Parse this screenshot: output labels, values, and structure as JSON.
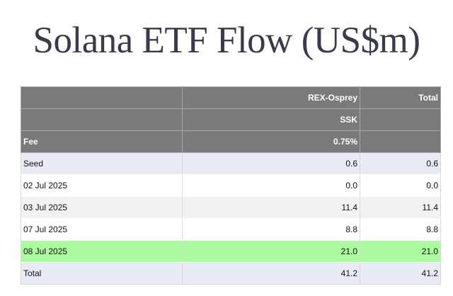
{
  "title": "Solana ETF Flow (US$m)",
  "colors": {
    "title_text": "#3a3a4e",
    "header_bg": "#7a7a7a",
    "header_text": "#ffffff",
    "row_lavender": "#e8ebf6",
    "row_grey": "#f1f1f1",
    "row_highlight_green": "#abfa9f"
  },
  "table": {
    "header_rows": [
      [
        "",
        "REX-Osprey",
        "Total"
      ],
      [
        "",
        "SSK",
        ""
      ],
      [
        "Fee",
        "0.75%",
        ""
      ]
    ],
    "rows": [
      {
        "label": "Seed",
        "rex_osprey": "0.6",
        "total": "0.6",
        "style": "lavender"
      },
      {
        "label": "02 Jul 2025",
        "rex_osprey": "0.0",
        "total": "0.0",
        "style": "white"
      },
      {
        "label": "03 Jul 2025",
        "rex_osprey": "11.4",
        "total": "11.4",
        "style": "grey"
      },
      {
        "label": "07 Jul 2025",
        "rex_osprey": "8.8",
        "total": "8.8",
        "style": "white"
      },
      {
        "label": "08 Jul 2025",
        "rex_osprey": "21.0",
        "total": "21.0",
        "style": "green"
      },
      {
        "label": "Total",
        "rex_osprey": "41.2",
        "total": "41.2",
        "style": "lavender"
      }
    ]
  }
}
